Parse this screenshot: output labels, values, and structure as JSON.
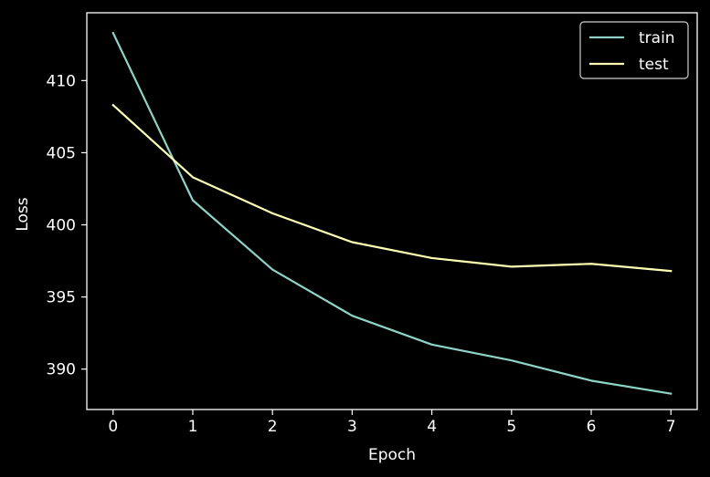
{
  "chart_data": {
    "type": "line",
    "title": "",
    "xlabel": "Epoch",
    "ylabel": "Loss",
    "x": [
      0,
      1,
      2,
      3,
      4,
      5,
      6,
      7
    ],
    "x_ticks": [
      "0",
      "1",
      "2",
      "3",
      "4",
      "5",
      "6",
      "7"
    ],
    "y_ticks": [
      "390",
      "395",
      "400",
      "405",
      "410"
    ],
    "xlim": [
      -0.33,
      7.33
    ],
    "ylim": [
      387.2,
      414.7
    ],
    "grid": false,
    "legend_position": "top-right",
    "background": "#000000",
    "foreground": "#ffffff",
    "series": [
      {
        "name": "train",
        "color": "#8dd3c7",
        "values": [
          413.3,
          401.7,
          396.9,
          393.7,
          391.7,
          390.6,
          389.2,
          388.3
        ]
      },
      {
        "name": "test",
        "color": "#feffb3",
        "values": [
          408.3,
          403.3,
          400.8,
          398.8,
          397.7,
          397.1,
          397.3,
          396.8
        ]
      }
    ]
  }
}
